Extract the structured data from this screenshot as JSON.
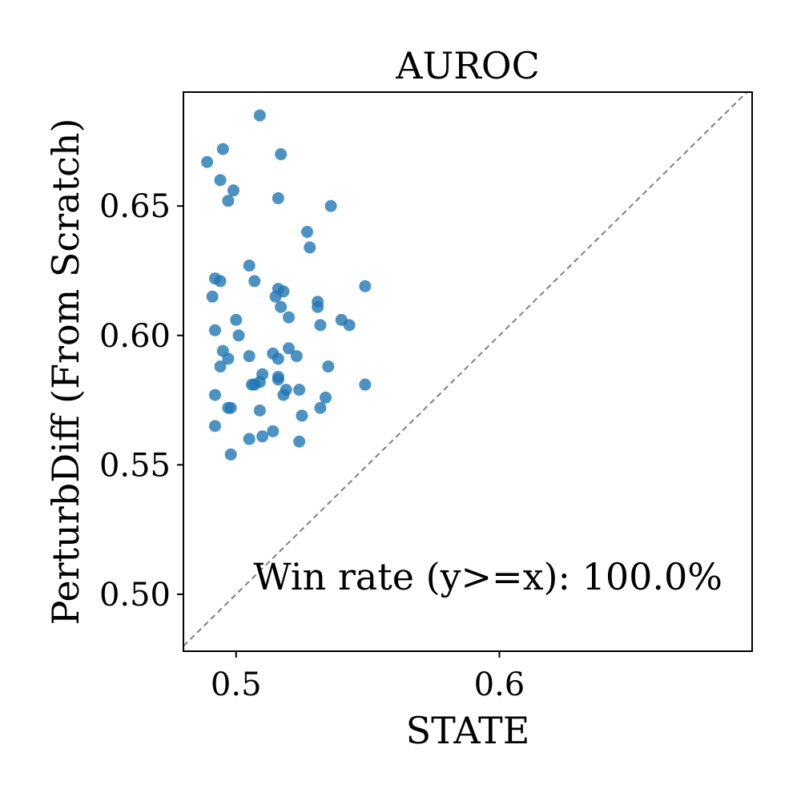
{
  "chart_data": {
    "type": "scatter",
    "title": "AUROC",
    "xlabel": "STATE",
    "ylabel": "PerturbDiff (From Scratch)",
    "xlim": [
      0.48,
      0.696
    ],
    "ylim": [
      0.478,
      0.694
    ],
    "xticks": [
      0.5,
      0.6
    ],
    "xtick_labels": [
      "0.5",
      "0.6"
    ],
    "yticks": [
      0.5,
      0.55,
      0.6,
      0.65
    ],
    "ytick_labels": [
      "0.50",
      "0.55",
      "0.60",
      "0.65"
    ],
    "grid": false,
    "diagonal_line": true,
    "point_color": "#1f77b4",
    "diagonal_color": "#808080",
    "annotation": "Win rate (y>=x): 100.0%",
    "points": [
      {
        "x": 0.509,
        "y": 0.685
      },
      {
        "x": 0.495,
        "y": 0.672
      },
      {
        "x": 0.517,
        "y": 0.67
      },
      {
        "x": 0.489,
        "y": 0.667
      },
      {
        "x": 0.494,
        "y": 0.66
      },
      {
        "x": 0.499,
        "y": 0.656
      },
      {
        "x": 0.497,
        "y": 0.652
      },
      {
        "x": 0.516,
        "y": 0.653
      },
      {
        "x": 0.536,
        "y": 0.65
      },
      {
        "x": 0.527,
        "y": 0.64
      },
      {
        "x": 0.528,
        "y": 0.634
      },
      {
        "x": 0.505,
        "y": 0.627
      },
      {
        "x": 0.492,
        "y": 0.622
      },
      {
        "x": 0.494,
        "y": 0.621
      },
      {
        "x": 0.507,
        "y": 0.621
      },
      {
        "x": 0.549,
        "y": 0.619
      },
      {
        "x": 0.516,
        "y": 0.618
      },
      {
        "x": 0.518,
        "y": 0.617
      },
      {
        "x": 0.491,
        "y": 0.615
      },
      {
        "x": 0.515,
        "y": 0.615
      },
      {
        "x": 0.531,
        "y": 0.613
      },
      {
        "x": 0.531,
        "y": 0.611
      },
      {
        "x": 0.517,
        "y": 0.611
      },
      {
        "x": 0.52,
        "y": 0.607
      },
      {
        "x": 0.54,
        "y": 0.606
      },
      {
        "x": 0.5,
        "y": 0.606
      },
      {
        "x": 0.543,
        "y": 0.604
      },
      {
        "x": 0.532,
        "y": 0.604
      },
      {
        "x": 0.492,
        "y": 0.602
      },
      {
        "x": 0.501,
        "y": 0.6
      },
      {
        "x": 0.52,
        "y": 0.595
      },
      {
        "x": 0.495,
        "y": 0.594
      },
      {
        "x": 0.514,
        "y": 0.593
      },
      {
        "x": 0.505,
        "y": 0.592
      },
      {
        "x": 0.523,
        "y": 0.592
      },
      {
        "x": 0.497,
        "y": 0.591
      },
      {
        "x": 0.516,
        "y": 0.591
      },
      {
        "x": 0.494,
        "y": 0.588
      },
      {
        "x": 0.535,
        "y": 0.588
      },
      {
        "x": 0.51,
        "y": 0.585
      },
      {
        "x": 0.516,
        "y": 0.584
      },
      {
        "x": 0.516,
        "y": 0.583
      },
      {
        "x": 0.509,
        "y": 0.582
      },
      {
        "x": 0.506,
        "y": 0.581
      },
      {
        "x": 0.507,
        "y": 0.581
      },
      {
        "x": 0.549,
        "y": 0.581
      },
      {
        "x": 0.519,
        "y": 0.579
      },
      {
        "x": 0.524,
        "y": 0.579
      },
      {
        "x": 0.492,
        "y": 0.577
      },
      {
        "x": 0.518,
        "y": 0.577
      },
      {
        "x": 0.534,
        "y": 0.576
      },
      {
        "x": 0.497,
        "y": 0.572
      },
      {
        "x": 0.498,
        "y": 0.572
      },
      {
        "x": 0.532,
        "y": 0.572
      },
      {
        "x": 0.509,
        "y": 0.571
      },
      {
        "x": 0.525,
        "y": 0.569
      },
      {
        "x": 0.492,
        "y": 0.565
      },
      {
        "x": 0.514,
        "y": 0.563
      },
      {
        "x": 0.51,
        "y": 0.561
      },
      {
        "x": 0.505,
        "y": 0.56
      },
      {
        "x": 0.524,
        "y": 0.559
      },
      {
        "x": 0.498,
        "y": 0.554
      }
    ]
  }
}
